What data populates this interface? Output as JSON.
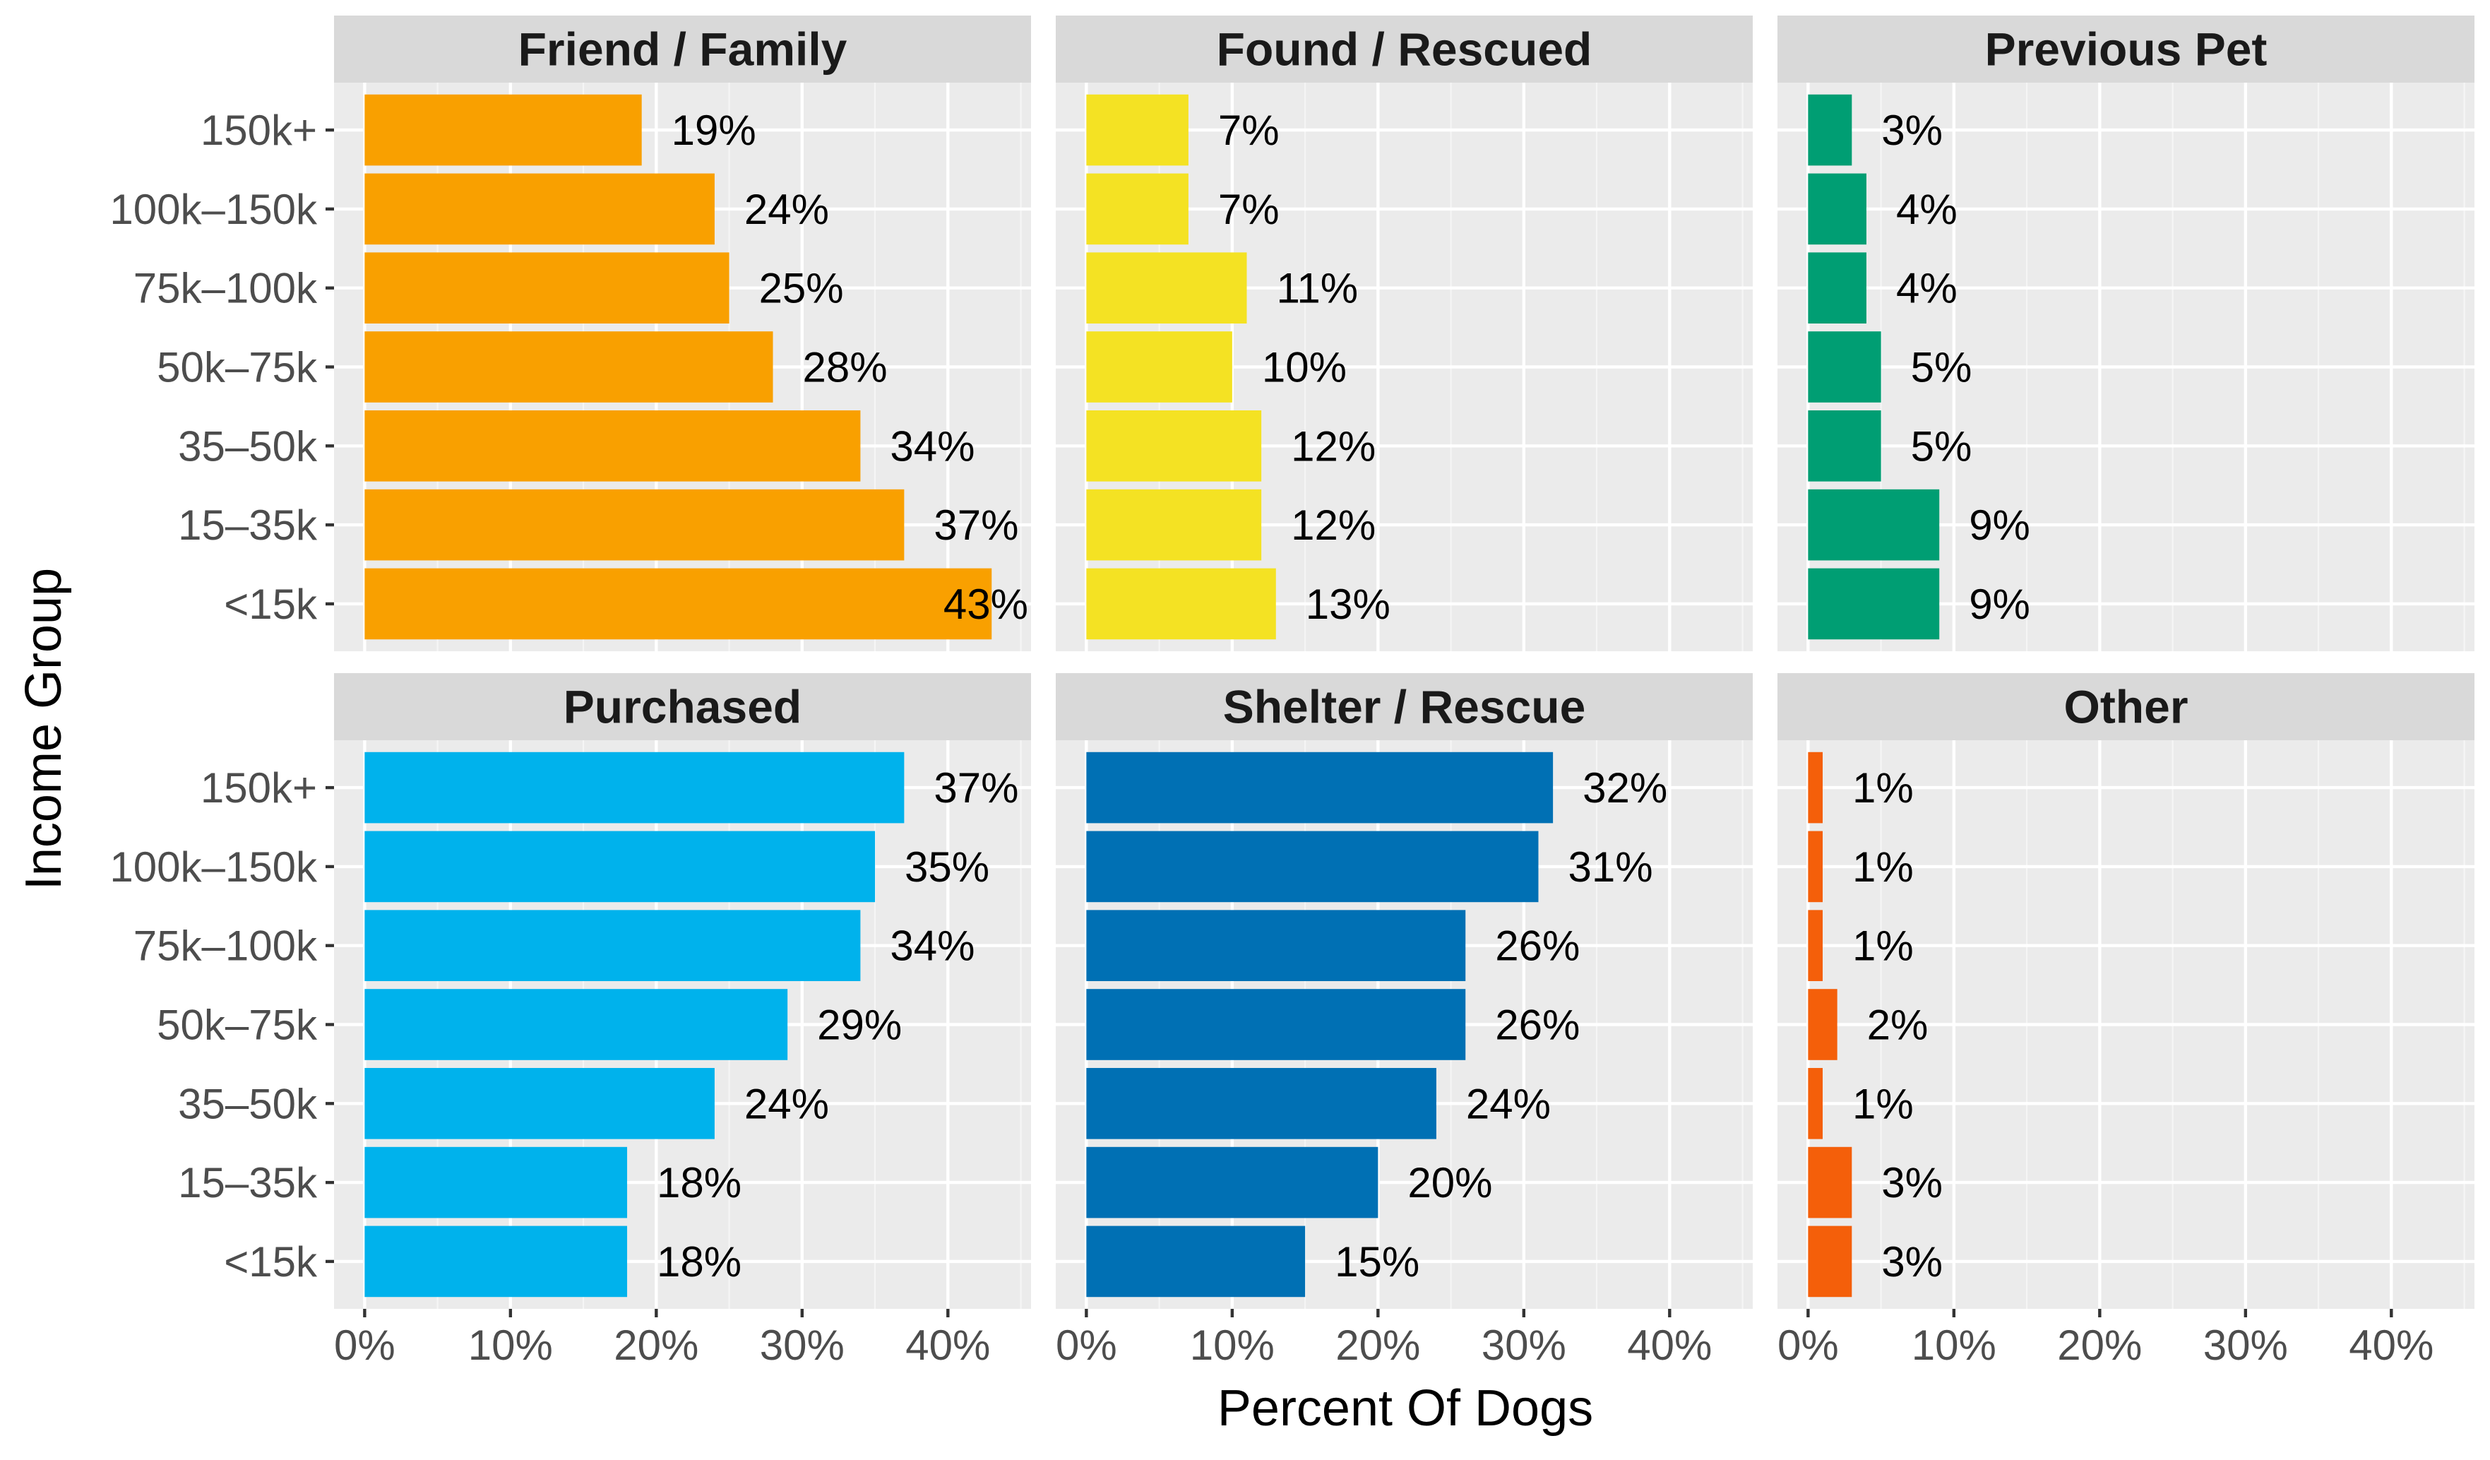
{
  "chart_data": {
    "type": "bar",
    "orientation": "horizontal",
    "facet_layout": {
      "rows": 2,
      "cols": 3
    },
    "xlabel": "Percent Of Dogs",
    "ylabel": "Income Group",
    "categories": [
      "150k+",
      "100k–150k",
      "75k–100k",
      "50k–75k",
      "35–50k",
      "15–35k",
      "<15k"
    ],
    "x_ticks": [
      0,
      10,
      20,
      30,
      40
    ],
    "x_tick_labels": [
      "0%",
      "10%",
      "20%",
      "30%",
      "40%"
    ],
    "xlim": [
      -2.1,
      45.7
    ],
    "value_unit": "%",
    "grid": true,
    "legend": "none",
    "panels": [
      {
        "title": "Friend / Family",
        "color": "#F9A000",
        "values": [
          19,
          24,
          25,
          28,
          34,
          37,
          43
        ],
        "labels": [
          "19%",
          "24%",
          "25%",
          "28%",
          "34%",
          "37%",
          "43%"
        ]
      },
      {
        "title": "Found / Rescued",
        "color": "#F4E223",
        "values": [
          7,
          7,
          11,
          10,
          12,
          12,
          13
        ],
        "labels": [
          "7%",
          "7%",
          "11%",
          "10%",
          "12%",
          "12%",
          "13%"
        ]
      },
      {
        "title": "Previous Pet",
        "color": "#009E73",
        "values": [
          3,
          4,
          4,
          5,
          5,
          9,
          9
        ],
        "labels": [
          "3%",
          "4%",
          "4%",
          "5%",
          "5%",
          "9%",
          "9%"
        ]
      },
      {
        "title": "Purchased",
        "color": "#00B2EC",
        "values": [
          37,
          35,
          34,
          29,
          24,
          18,
          18
        ],
        "labels": [
          "37%",
          "35%",
          "34%",
          "29%",
          "24%",
          "18%",
          "18%"
        ]
      },
      {
        "title": "Shelter / Rescue",
        "color": "#0070B4",
        "values": [
          32,
          31,
          26,
          26,
          24,
          20,
          15
        ],
        "labels": [
          "32%",
          "31%",
          "26%",
          "26%",
          "24%",
          "20%",
          "15%"
        ]
      },
      {
        "title": "Other",
        "color": "#F45F0A",
        "values": [
          1,
          1,
          1,
          2,
          1,
          3,
          3
        ],
        "labels": [
          "1%",
          "1%",
          "1%",
          "2%",
          "1%",
          "3%",
          "3%"
        ]
      }
    ]
  }
}
